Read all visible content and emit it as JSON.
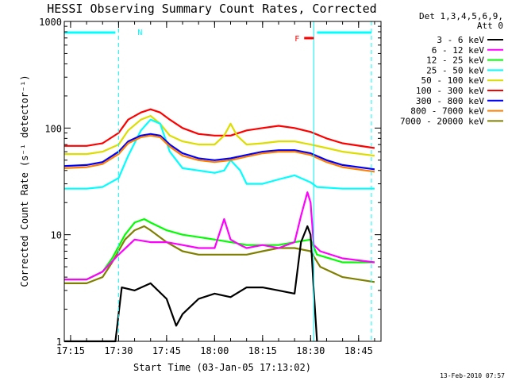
{
  "chart_data": {
    "type": "line",
    "title": "HESSI Observing Summary Count Rates, Corrected",
    "xlabel": "Start Time (03-Jan-05 17:13:02)",
    "ylabel": "Corrected Count Rate (s⁻¹ detector⁻¹)",
    "xlim": [
      "17:13:02",
      "18:52"
    ],
    "ylim": [
      1,
      1000
    ],
    "yscale": "log",
    "x_ticks": [
      "17:15",
      "17:30",
      "17:45",
      "18:00",
      "18:15",
      "18:30",
      "18:45"
    ],
    "y_ticks": [
      "1",
      "10",
      "100",
      "1000"
    ],
    "legend": {
      "position": "right",
      "header": [
        "Det 1,3,4,5,6,9,",
        "Att 0"
      ],
      "entries": [
        {
          "name": "3 - 6 keV",
          "color": "#000000"
        },
        {
          "name": "6 - 12 keV",
          "color": "#ff00ff"
        },
        {
          "name": "12 - 25 keV",
          "color": "#00ff00"
        },
        {
          "name": "25 - 50 keV",
          "color": "#00ffff"
        },
        {
          "name": "50 - 100 keV",
          "color": "#dddd00"
        },
        {
          "name": "100 - 300 keV",
          "color": "#ff0000"
        },
        {
          "name": "300 - 800 keV",
          "color": "#0000ff"
        },
        {
          "name": "800 - 7000 keV",
          "color": "#ff8000"
        },
        {
          "name": "7000 - 20000 keV",
          "color": "#808000"
        }
      ]
    },
    "annotations": {
      "night_label": "N",
      "flare_label": "F",
      "night_bars": [
        [
          "17:13",
          "17:29"
        ],
        [
          "18:32",
          "18:49"
        ]
      ],
      "flare_bar": [
        "18:28",
        "18:31"
      ],
      "vertical_lines": [
        {
          "time": "17:30",
          "color": "#00ffff",
          "style": "dashed"
        },
        {
          "time": "18:31",
          "color": "#00ffff",
          "style": "solid"
        },
        {
          "time": "18:49",
          "color": "#00ffff",
          "style": "dashed"
        }
      ]
    },
    "series": [
      {
        "name": "3 - 6 keV",
        "color": "#000000",
        "x": [
          "17:13",
          "17:29",
          "17:30",
          "17:31",
          "17:35",
          "17:40",
          "17:45",
          "17:48",
          "17:50",
          "17:55",
          "18:00",
          "18:05",
          "18:10",
          "18:15",
          "18:20",
          "18:25",
          "18:27",
          "18:29",
          "18:30",
          "18:31",
          "18:32"
        ],
        "y": [
          1.0,
          1.0,
          1.8,
          3.2,
          3.0,
          3.5,
          2.5,
          1.4,
          1.8,
          2.5,
          2.8,
          2.6,
          3.2,
          3.2,
          3.0,
          2.8,
          8.5,
          12,
          10,
          3.0,
          1.0
        ]
      },
      {
        "name": "6 - 12 keV",
        "color": "#ff00ff",
        "x": [
          "17:13",
          "17:20",
          "17:25",
          "17:30",
          "17:35",
          "17:40",
          "17:45",
          "17:50",
          "17:55",
          "18:00",
          "18:03",
          "18:05",
          "18:08",
          "18:10",
          "18:15",
          "18:20",
          "18:25",
          "18:27",
          "18:29",
          "18:30",
          "18:31",
          "18:33",
          "18:40",
          "18:50"
        ],
        "y": [
          3.8,
          3.8,
          4.5,
          6.5,
          9.0,
          8.5,
          8.5,
          8.0,
          7.5,
          7.5,
          14,
          9.0,
          8.0,
          7.5,
          8.0,
          7.5,
          8.5,
          15,
          25,
          20,
          8.0,
          7.0,
          6.0,
          5.5
        ]
      },
      {
        "name": "12 - 25 keV",
        "color": "#00ff00",
        "x": [
          "17:13",
          "17:20",
          "17:25",
          "17:28",
          "17:32",
          "17:35",
          "17:38",
          "17:40",
          "17:45",
          "17:50",
          "17:55",
          "18:00",
          "18:05",
          "18:10",
          "18:15",
          "18:20",
          "18:25",
          "18:30",
          "18:32",
          "18:40",
          "18:50"
        ],
        "y": [
          3.8,
          3.8,
          4.5,
          6.0,
          10,
          13,
          14,
          13,
          11,
          10,
          9.5,
          9.0,
          8.5,
          8.0,
          8.0,
          8.0,
          8.5,
          9.0,
          6.5,
          5.5,
          5.5
        ]
      },
      {
        "name": "25 - 50 keV",
        "color": "#00ffff",
        "x": [
          "17:13",
          "17:20",
          "17:25",
          "17:30",
          "17:33",
          "17:37",
          "17:40",
          "17:43",
          "17:46",
          "17:50",
          "17:55",
          "18:00",
          "18:03",
          "18:05",
          "18:08",
          "18:10",
          "18:15",
          "18:20",
          "18:25",
          "18:30",
          "18:32",
          "18:40",
          "18:50"
        ],
        "y": [
          27,
          27,
          28,
          34,
          55,
          95,
          120,
          110,
          60,
          42,
          40,
          38,
          40,
          50,
          40,
          30,
          30,
          33,
          36,
          31,
          28,
          27,
          27
        ]
      },
      {
        "name": "50 - 100 keV",
        "color": "#dddd00",
        "x": [
          "17:13",
          "17:20",
          "17:25",
          "17:30",
          "17:33",
          "17:37",
          "17:40",
          "17:43",
          "17:46",
          "17:50",
          "17:55",
          "18:00",
          "18:03",
          "18:05",
          "18:07",
          "18:10",
          "18:15",
          "18:20",
          "18:25",
          "18:30",
          "18:35",
          "18:40",
          "18:50"
        ],
        "y": [
          57,
          57,
          60,
          70,
          95,
          120,
          130,
          110,
          85,
          75,
          70,
          70,
          85,
          110,
          85,
          70,
          72,
          75,
          75,
          70,
          65,
          60,
          55
        ]
      },
      {
        "name": "100 - 300 keV",
        "color": "#ff0000",
        "x": [
          "17:13",
          "17:20",
          "17:25",
          "17:30",
          "17:33",
          "17:37",
          "17:40",
          "17:43",
          "17:46",
          "17:50",
          "17:55",
          "18:00",
          "18:05",
          "18:10",
          "18:15",
          "18:20",
          "18:25",
          "18:30",
          "18:35",
          "18:40",
          "18:50"
        ],
        "y": [
          68,
          68,
          72,
          90,
          120,
          140,
          150,
          140,
          120,
          100,
          88,
          85,
          85,
          95,
          100,
          105,
          100,
          92,
          80,
          72,
          65
        ]
      },
      {
        "name": "300 - 800 keV",
        "color": "#0000ff",
        "x": [
          "17:13",
          "17:20",
          "17:25",
          "17:30",
          "17:33",
          "17:37",
          "17:40",
          "17:43",
          "17:46",
          "17:50",
          "17:55",
          "18:00",
          "18:05",
          "18:10",
          "18:15",
          "18:20",
          "18:25",
          "18:30",
          "18:35",
          "18:40",
          "18:50"
        ],
        "y": [
          44,
          45,
          48,
          60,
          75,
          85,
          88,
          85,
          70,
          58,
          52,
          50,
          52,
          56,
          60,
          62,
          62,
          58,
          50,
          45,
          41
        ]
      },
      {
        "name": "800 - 7000 keV",
        "color": "#ff8000",
        "x": [
          "17:13",
          "17:20",
          "17:25",
          "17:30",
          "17:33",
          "17:37",
          "17:40",
          "17:43",
          "17:46",
          "17:50",
          "17:55",
          "18:00",
          "18:05",
          "18:10",
          "18:15",
          "18:20",
          "18:25",
          "18:30",
          "18:35",
          "18:40",
          "18:50"
        ],
        "y": [
          42,
          43,
          46,
          57,
          72,
          82,
          85,
          82,
          67,
          55,
          50,
          48,
          50,
          54,
          58,
          60,
          60,
          56,
          48,
          43,
          39
        ]
      },
      {
        "name": "7000 - 20000 keV",
        "color": "#808000",
        "x": [
          "17:13",
          "17:20",
          "17:25",
          "17:28",
          "17:32",
          "17:35",
          "17:38",
          "17:40",
          "17:45",
          "17:50",
          "17:55",
          "18:00",
          "18:05",
          "18:10",
          "18:15",
          "18:20",
          "18:25",
          "18:30",
          "18:33",
          "18:40",
          "18:50"
        ],
        "y": [
          3.5,
          3.5,
          4.0,
          5.5,
          9.0,
          11,
          12,
          11,
          8.5,
          7.0,
          6.5,
          6.5,
          6.5,
          6.5,
          7.0,
          7.5,
          7.5,
          7.0,
          5.0,
          4.0,
          3.6
        ]
      }
    ]
  },
  "footer": {
    "date_stamp": "13-Feb-2010 07:57"
  }
}
